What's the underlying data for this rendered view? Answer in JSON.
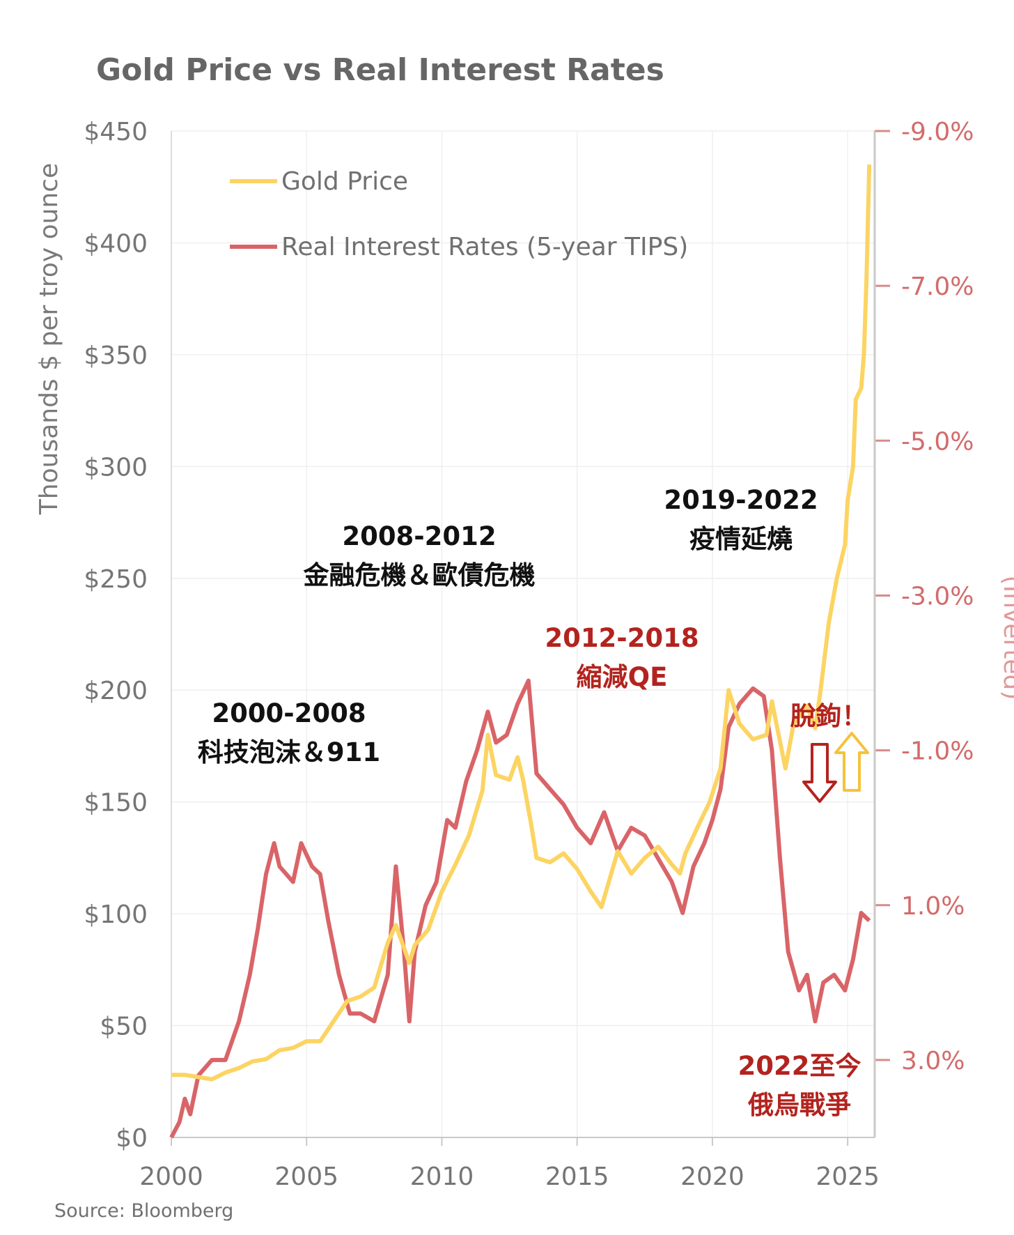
{
  "chart_data": {
    "type": "line",
    "title": "Gold Price vs Real Interest Rates",
    "source": "Source: Bloomberg",
    "x_axis": {
      "ticks": [
        "2000",
        "2005",
        "2010",
        "2015",
        "2020",
        "2025"
      ],
      "range": [
        2000,
        2026
      ]
    },
    "y_left": {
      "label": "Thousands $ per troy ounce",
      "ticks": [
        "$0",
        "$50",
        "$100",
        "$150",
        "$200",
        "$250",
        "$300",
        "$350",
        "$400",
        "$450"
      ],
      "range": [
        0,
        450
      ]
    },
    "y_right": {
      "label": "(Inverted)",
      "ticks": [
        "-9.0%",
        "-7.0%",
        "-5.0%",
        "-3.0%",
        "-1.0%",
        "1.0%",
        "3.0%"
      ],
      "range": [
        -9,
        4
      ],
      "inverted": true
    },
    "grid": true,
    "legend": {
      "position": "top-left"
    },
    "series": [
      {
        "name": "Gold Price",
        "color": "#fcd463",
        "axis": "left",
        "points": [
          [
            2000.0,
            28
          ],
          [
            2000.5,
            28
          ],
          [
            2001.0,
            27
          ],
          [
            2001.5,
            26
          ],
          [
            2002.0,
            29
          ],
          [
            2002.5,
            31
          ],
          [
            2003.0,
            34
          ],
          [
            2003.5,
            35
          ],
          [
            2004.0,
            39
          ],
          [
            2004.5,
            40
          ],
          [
            2005.0,
            43
          ],
          [
            2005.5,
            43
          ],
          [
            2006.0,
            52
          ],
          [
            2006.5,
            61
          ],
          [
            2007.0,
            63
          ],
          [
            2007.5,
            67
          ],
          [
            2008.0,
            87
          ],
          [
            2008.3,
            95
          ],
          [
            2008.8,
            78
          ],
          [
            2009.0,
            86
          ],
          [
            2009.5,
            93
          ],
          [
            2010.0,
            110
          ],
          [
            2010.5,
            122
          ],
          [
            2011.0,
            135
          ],
          [
            2011.5,
            155
          ],
          [
            2011.7,
            180
          ],
          [
            2012.0,
            162
          ],
          [
            2012.5,
            160
          ],
          [
            2012.8,
            170
          ],
          [
            2013.0,
            160
          ],
          [
            2013.3,
            140
          ],
          [
            2013.5,
            125
          ],
          [
            2014.0,
            123
          ],
          [
            2014.5,
            127
          ],
          [
            2015.0,
            120
          ],
          [
            2015.5,
            110
          ],
          [
            2015.9,
            103
          ],
          [
            2016.5,
            128
          ],
          [
            2017.0,
            118
          ],
          [
            2017.5,
            125
          ],
          [
            2018.0,
            130
          ],
          [
            2018.5,
            122
          ],
          [
            2018.8,
            118
          ],
          [
            2019.0,
            127
          ],
          [
            2019.5,
            140
          ],
          [
            2019.9,
            150
          ],
          [
            2020.3,
            165
          ],
          [
            2020.6,
            200
          ],
          [
            2021.0,
            185
          ],
          [
            2021.5,
            178
          ],
          [
            2022.0,
            180
          ],
          [
            2022.2,
            195
          ],
          [
            2022.7,
            165
          ],
          [
            2023.0,
            185
          ],
          [
            2023.5,
            193
          ],
          [
            2023.8,
            183
          ],
          [
            2024.0,
            200
          ],
          [
            2024.3,
            230
          ],
          [
            2024.6,
            250
          ],
          [
            2024.9,
            265
          ],
          [
            2025.0,
            285
          ],
          [
            2025.2,
            300
          ],
          [
            2025.3,
            330
          ],
          [
            2025.5,
            335
          ],
          [
            2025.6,
            350
          ],
          [
            2025.7,
            385
          ],
          [
            2025.8,
            435
          ]
        ]
      },
      {
        "name": "Real Interest Rates (5-year TIPS)",
        "color": "#d96468",
        "axis": "right",
        "points": [
          [
            2000.0,
            4.0
          ],
          [
            2000.3,
            3.8
          ],
          [
            2000.5,
            3.5
          ],
          [
            2000.7,
            3.7
          ],
          [
            2001.0,
            3.2
          ],
          [
            2001.5,
            3.0
          ],
          [
            2002.0,
            3.0
          ],
          [
            2002.5,
            2.5
          ],
          [
            2002.9,
            1.9
          ],
          [
            2003.2,
            1.3
          ],
          [
            2003.5,
            0.6
          ],
          [
            2003.8,
            0.2
          ],
          [
            2004.0,
            0.5
          ],
          [
            2004.5,
            0.7
          ],
          [
            2004.8,
            0.2
          ],
          [
            2005.2,
            0.5
          ],
          [
            2005.5,
            0.6
          ],
          [
            2005.8,
            1.2
          ],
          [
            2006.2,
            1.9
          ],
          [
            2006.6,
            2.4
          ],
          [
            2007.0,
            2.4
          ],
          [
            2007.5,
            2.5
          ],
          [
            2008.0,
            1.9
          ],
          [
            2008.3,
            0.5
          ],
          [
            2008.6,
            1.6
          ],
          [
            2008.8,
            2.5
          ],
          [
            2009.0,
            1.6
          ],
          [
            2009.4,
            1.0
          ],
          [
            2009.8,
            0.7
          ],
          [
            2010.2,
            -0.1
          ],
          [
            2010.5,
            0.0
          ],
          [
            2010.9,
            -0.6
          ],
          [
            2011.3,
            -1.0
          ],
          [
            2011.7,
            -1.5
          ],
          [
            2012.0,
            -1.1
          ],
          [
            2012.4,
            -1.2
          ],
          [
            2012.8,
            -1.6
          ],
          [
            2013.2,
            -1.9
          ],
          [
            2013.5,
            -0.7
          ],
          [
            2014.0,
            -0.5
          ],
          [
            2014.5,
            -0.3
          ],
          [
            2015.0,
            0.0
          ],
          [
            2015.5,
            0.2
          ],
          [
            2016.0,
            -0.2
          ],
          [
            2016.5,
            0.3
          ],
          [
            2017.0,
            0.0
          ],
          [
            2017.5,
            0.1
          ],
          [
            2018.0,
            0.4
          ],
          [
            2018.5,
            0.7
          ],
          [
            2018.9,
            1.1
          ],
          [
            2019.3,
            0.5
          ],
          [
            2019.7,
            0.2
          ],
          [
            2020.0,
            -0.1
          ],
          [
            2020.3,
            -0.5
          ],
          [
            2020.6,
            -1.3
          ],
          [
            2021.0,
            -1.6
          ],
          [
            2021.5,
            -1.8
          ],
          [
            2021.9,
            -1.7
          ],
          [
            2022.2,
            -1.0
          ],
          [
            2022.5,
            0.4
          ],
          [
            2022.8,
            1.6
          ],
          [
            2023.2,
            2.1
          ],
          [
            2023.5,
            1.9
          ],
          [
            2023.8,
            2.5
          ],
          [
            2024.1,
            2.0
          ],
          [
            2024.5,
            1.9
          ],
          [
            2024.9,
            2.1
          ],
          [
            2025.2,
            1.7
          ],
          [
            2025.5,
            1.1
          ],
          [
            2025.8,
            1.2
          ]
        ]
      }
    ],
    "annotations": [
      {
        "lines": [
          "2000-2008",
          "科技泡沫＆911"
        ],
        "color": "#111111"
      },
      {
        "lines": [
          "2008-2012",
          "金融危機＆歐債危機"
        ],
        "color": "#111111"
      },
      {
        "lines": [
          "2012-2018",
          "縮減QE"
        ],
        "color": "#b3231e"
      },
      {
        "lines": [
          "2019-2022",
          "疫情延燒"
        ],
        "color": "#111111"
      },
      {
        "lines": [
          "脫鉤！"
        ],
        "color": "#b3231e"
      },
      {
        "lines": [
          "2022至今",
          "俄烏戰爭"
        ],
        "color": "#b3231e"
      }
    ]
  }
}
